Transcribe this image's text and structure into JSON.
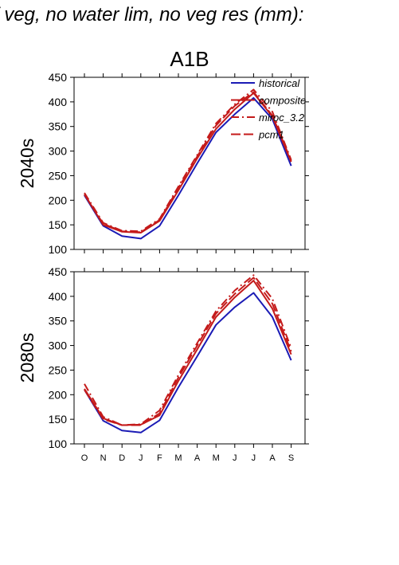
{
  "header": {
    "title": "f veg, no water lim, no veg res (mm):"
  },
  "colors": {
    "historical": "#1b1bb5",
    "scenario": "#c41a1a"
  },
  "chart_data": [
    {
      "type": "line",
      "title": "A1B",
      "ylabel": "2040s",
      "xlabel": "",
      "categories": [
        "O",
        "N",
        "D",
        "J",
        "F",
        "M",
        "A",
        "M",
        "J",
        "J",
        "A",
        "S"
      ],
      "ylim": [
        100,
        450
      ],
      "yticks": [
        100,
        150,
        200,
        250,
        300,
        350,
        400,
        450
      ],
      "show_x_tick_labels": false,
      "legend": {
        "position": "top-right",
        "entries": [
          "historical",
          "composite",
          "miroc_3.2",
          "pcm1"
        ]
      },
      "series": [
        {
          "name": "historical",
          "style": "solid",
          "color": "#1b1bb5",
          "values": [
            210,
            148,
            127,
            122,
            148,
            210,
            275,
            338,
            375,
            408,
            365,
            270
          ]
        },
        {
          "name": "composite",
          "style": "solid",
          "color": "#c41a1a",
          "values": [
            212,
            150,
            136,
            134,
            158,
            220,
            285,
            345,
            385,
            418,
            370,
            278
          ]
        },
        {
          "name": "miroc_3.2",
          "style": "dashdot",
          "color": "#c41a1a",
          "values": [
            215,
            154,
            138,
            137,
            162,
            228,
            292,
            356,
            395,
            425,
            380,
            282
          ]
        },
        {
          "name": "pcm1",
          "style": "dash",
          "color": "#c41a1a",
          "values": [
            212,
            152,
            137,
            135,
            160,
            225,
            289,
            352,
            392,
            420,
            372,
            280
          ]
        }
      ]
    },
    {
      "type": "line",
      "title": "",
      "ylabel": "2080s",
      "xlabel": "",
      "categories": [
        "O",
        "N",
        "D",
        "J",
        "F",
        "M",
        "A",
        "M",
        "J",
        "J",
        "A",
        "S"
      ],
      "ylim": [
        100,
        450
      ],
      "yticks": [
        100,
        150,
        200,
        250,
        300,
        350,
        400,
        450
      ],
      "show_x_tick_labels": true,
      "series": [
        {
          "name": "historical",
          "style": "solid",
          "color": "#1b1bb5",
          "values": [
            210,
            147,
            127,
            123,
            148,
            215,
            278,
            342,
            378,
            407,
            358,
            270
          ]
        },
        {
          "name": "composite",
          "style": "solid",
          "color": "#c41a1a",
          "values": [
            212,
            152,
            138,
            139,
            158,
            228,
            292,
            358,
            398,
            432,
            375,
            282
          ]
        },
        {
          "name": "miroc_3.2",
          "style": "dashdot",
          "color": "#c41a1a",
          "values": [
            222,
            155,
            138,
            140,
            168,
            240,
            305,
            370,
            412,
            443,
            395,
            295
          ]
        },
        {
          "name": "pcm1",
          "style": "dash",
          "color": "#c41a1a",
          "values": [
            210,
            150,
            138,
            138,
            162,
            235,
            300,
            365,
            405,
            438,
            385,
            288
          ]
        }
      ]
    }
  ]
}
